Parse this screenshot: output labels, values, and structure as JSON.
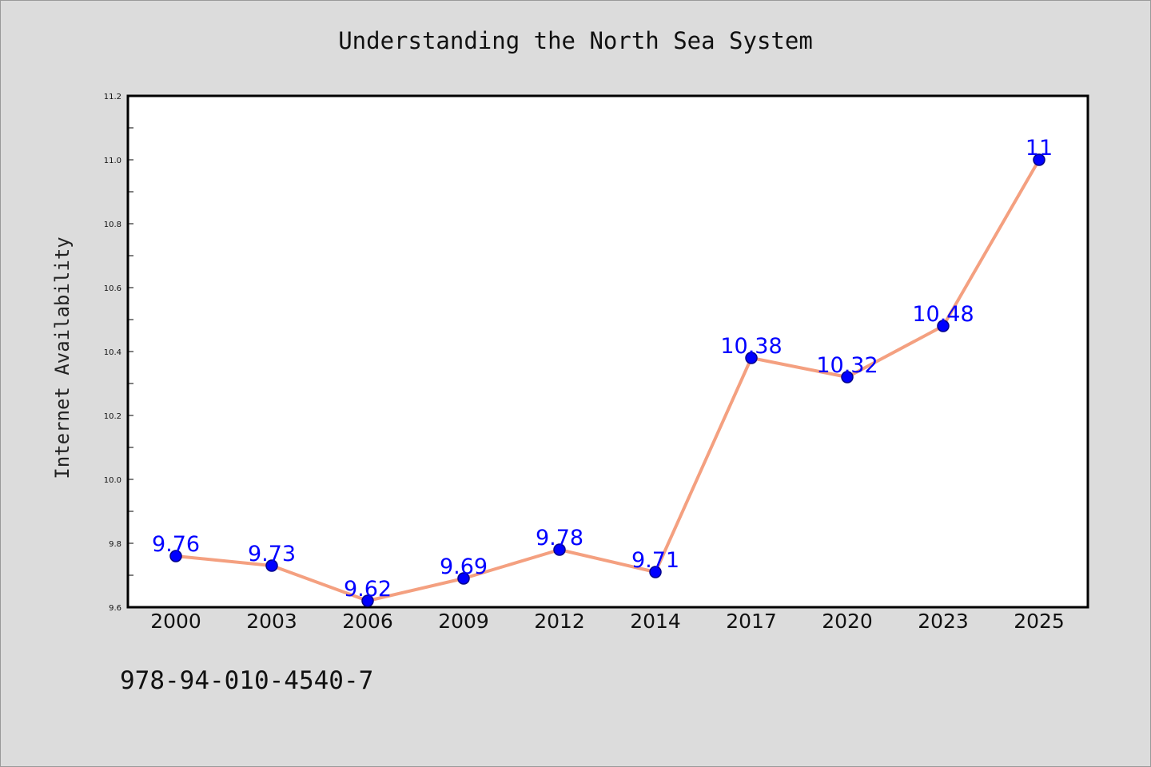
{
  "title": "Understanding the North Sea System",
  "code": "978-94-010-4540-7",
  "colors": {
    "line": "#f4a080",
    "marker_fill": "#0000ff",
    "marker_edge": "#00008b",
    "label": "#0000ff",
    "plot_bg": "#ffffff",
    "page_bg": "#dcdcdc"
  },
  "chart_data": {
    "type": "line",
    "title": "Understanding the North Sea System",
    "xlabel": "",
    "ylabel": "Internet Availability",
    "categories": [
      "2000",
      "2003",
      "2006",
      "2009",
      "2012",
      "2014",
      "2017",
      "2020",
      "2023",
      "2025"
    ],
    "values": [
      9.76,
      9.73,
      9.62,
      9.69,
      9.78,
      9.71,
      10.38,
      10.32,
      10.48,
      11
    ],
    "data_labels": [
      "9.76",
      "9.73",
      "9.62",
      "9.69",
      "9.78",
      "9.71",
      "10.38",
      "10.32",
      "10.48",
      "11"
    ],
    "ylim": [
      9.6,
      11.2
    ],
    "yticks": [
      "9.6",
      "9.8",
      "10.0",
      "10.2",
      "10.4",
      "10.6",
      "10.8",
      "11.0",
      "11.2"
    ],
    "grid": false,
    "legend": "none"
  }
}
